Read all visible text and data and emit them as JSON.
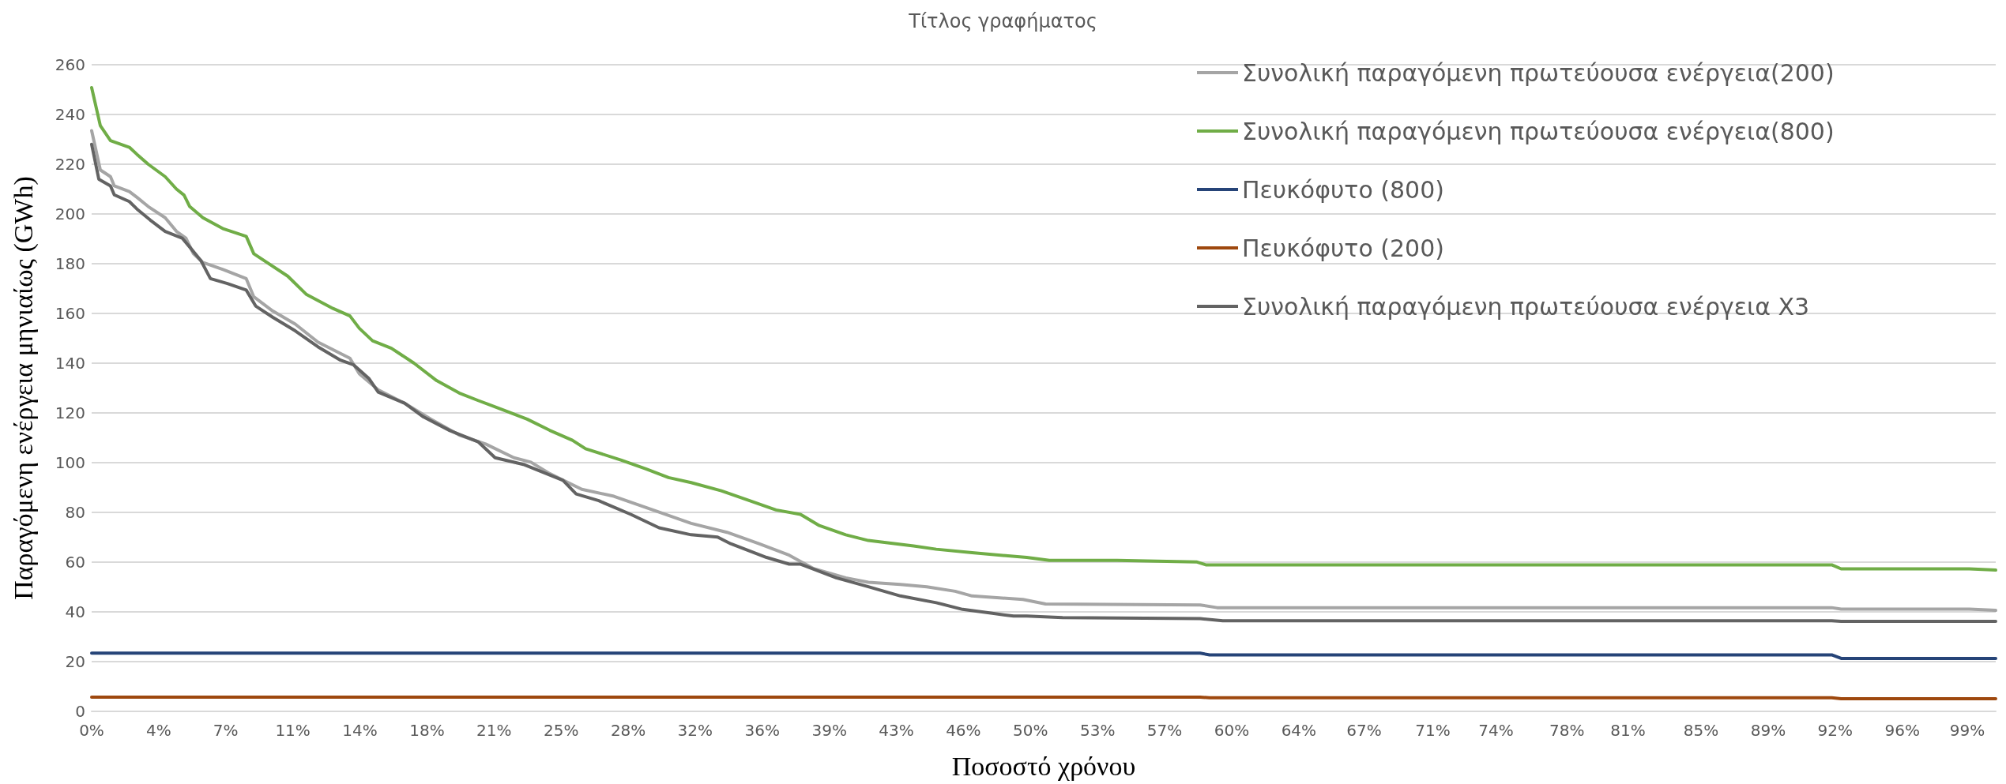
{
  "chart_data": {
    "type": "line",
    "title": "Τίτλος γραφήματος",
    "xlabel": "Ποσοστό χρόνου",
    "ylabel": "Παραγόμενη ενέργεια μηνιαίως (GWh)",
    "xlim": [
      0,
      101
    ],
    "ylim": [
      0,
      260
    ],
    "xticks": [
      {
        "value": 0,
        "label": "0%"
      },
      {
        "value": 3.56,
        "label": "4%"
      },
      {
        "value": 7.11,
        "label": "7%"
      },
      {
        "value": 10.67,
        "label": "11%"
      },
      {
        "value": 14.23,
        "label": "14%"
      },
      {
        "value": 17.79,
        "label": "18%"
      },
      {
        "value": 21.34,
        "label": "21%"
      },
      {
        "value": 24.9,
        "label": "25%"
      },
      {
        "value": 28.46,
        "label": "28%"
      },
      {
        "value": 32.01,
        "label": "32%"
      },
      {
        "value": 35.57,
        "label": "36%"
      },
      {
        "value": 39.13,
        "label": "39%"
      },
      {
        "value": 42.68,
        "label": "43%"
      },
      {
        "value": 46.24,
        "label": "46%"
      },
      {
        "value": 49.8,
        "label": "50%"
      },
      {
        "value": 53.36,
        "label": "53%"
      },
      {
        "value": 56.91,
        "label": "57%"
      },
      {
        "value": 60.47,
        "label": "60%"
      },
      {
        "value": 64.03,
        "label": "64%"
      },
      {
        "value": 67.49,
        "label": "67%"
      },
      {
        "value": 71.14,
        "label": "71%"
      },
      {
        "value": 74.49,
        "label": "74%"
      },
      {
        "value": 78.25,
        "label": "78%"
      },
      {
        "value": 81.49,
        "label": "81%"
      },
      {
        "value": 85.37,
        "label": "85%"
      },
      {
        "value": 88.93,
        "label": "89%"
      },
      {
        "value": 92.48,
        "label": "92%"
      },
      {
        "value": 96.04,
        "label": "96%"
      },
      {
        "value": 99.49,
        "label": "99%"
      }
    ],
    "yticks": [
      0,
      20,
      40,
      60,
      80,
      100,
      120,
      140,
      160,
      180,
      200,
      220,
      240,
      260
    ],
    "grid": "y",
    "legend": "top right",
    "series": [
      {
        "name": "Συνολική παραγόμενη πρωτεύουσα ενέργεια(200)",
        "color": "#a5a5a5",
        "x": [
          0,
          0.46,
          1,
          1.2,
          2,
          2.4,
          3,
          3.9,
          4.5,
          5,
          5.4,
          5.9,
          7,
          8.2,
          8.6,
          9.6,
          10.8,
          12,
          13.7,
          14.2,
          15.2,
          16.6,
          18,
          19.5,
          20.9,
          22.4,
          23.3,
          24.3,
          26,
          27.7,
          30.1,
          31.8,
          33.7,
          35.4,
          37,
          38.3,
          40,
          41.2,
          42.9,
          44.3,
          45.8,
          46.7,
          49.4,
          50.6,
          58.8,
          59.7,
          92.3,
          92.8,
          99.6,
          101
        ],
        "values": [
          233.5,
          217.7,
          215,
          211.3,
          209,
          206.7,
          203,
          198.5,
          193,
          190.3,
          184,
          180.5,
          177.6,
          174,
          166.7,
          161,
          155.7,
          148.5,
          142,
          135.7,
          129.3,
          123.9,
          117.5,
          111.1,
          107.5,
          102,
          100.2,
          95.6,
          89.3,
          86.5,
          80.1,
          75.6,
          72,
          67.4,
          62.8,
          57.4,
          53.7,
          51.9,
          51,
          50.1,
          48.3,
          46.4,
          45,
          43.2,
          42.8,
          41.7,
          41.7,
          41.1,
          41.1,
          40.6
        ]
      },
      {
        "name": "Συνολική παραγόμενη πρωτεύουσα ενέργεια(800)",
        "color": "#70ad47",
        "x": [
          0,
          0.46,
          1,
          2,
          2.4,
          3,
          3.9,
          4.5,
          4.9,
          5.2,
          5.9,
          7,
          8.2,
          8.6,
          9.2,
          10.4,
          11.4,
          12.8,
          13.7,
          14.2,
          14.9,
          15.9,
          17.1,
          18.3,
          19.5,
          20.5,
          21.9,
          23.1,
          24.3,
          25.5,
          26.2,
          28.1,
          29.4,
          30.6,
          31.8,
          33.4,
          34.9,
          36.3,
          37.6,
          38.6,
          40,
          41.2,
          43.6,
          44.8,
          46.7,
          49.6,
          50.8,
          54.4,
          58.6,
          59.1,
          92.3,
          92.8,
          99.6,
          101
        ],
        "values": [
          250.8,
          235.5,
          229.5,
          226.8,
          224,
          220,
          215,
          210,
          207.6,
          203,
          198.5,
          194,
          191,
          184,
          181,
          175,
          167.6,
          162,
          159,
          154,
          149,
          146,
          140,
          133,
          128,
          125,
          121,
          117.5,
          113,
          109,
          105.6,
          101,
          97.5,
          94,
          92,
          88.7,
          84.7,
          81,
          79.2,
          74.7,
          71,
          68.7,
          66.5,
          65.2,
          63.8,
          61.9,
          60.7,
          60.7,
          60.1,
          58.9,
          58.9,
          57.3,
          57.3,
          56.8
        ]
      },
      {
        "name": "Πευκόφυτο (800)",
        "color": "#264478",
        "x": [
          0,
          58.8,
          59.3,
          92.3,
          92.8,
          101
        ],
        "values": [
          23.4,
          23.4,
          22.7,
          22.7,
          21.3,
          21.3
        ]
      },
      {
        "name": "Πευκόφυτο (200)",
        "color": "#9e480e",
        "x": [
          0,
          58.8,
          59.3,
          92.3,
          92.8,
          101
        ],
        "values": [
          5.7,
          5.7,
          5.5,
          5.5,
          5.1,
          5.1
        ]
      },
      {
        "name": "Συνολική παραγόμενη πρωτεύουσα ενέργεια X3",
        "color": "#636363",
        "x": [
          0,
          0.38,
          1,
          1.2,
          2,
          2.4,
          3.1,
          3.9,
          4.8,
          5.2,
          5.8,
          6.3,
          7.2,
          8.2,
          8.7,
          9.6,
          10.8,
          12,
          13.2,
          13.9,
          14.7,
          15.2,
          16.6,
          17.6,
          19,
          20.5,
          21.4,
          22.9,
          25,
          25.7,
          26.9,
          28.6,
          30.1,
          31.8,
          33.2,
          33.9,
          35.8,
          37,
          37.6,
          39.5,
          41.2,
          42.9,
          44.8,
          46.2,
          47.7,
          48.9,
          49.6,
          51.5,
          58.8,
          60,
          92.3,
          92.8,
          101
        ],
        "values": [
          228,
          214,
          211.3,
          207.7,
          205,
          202,
          197.6,
          193,
          190.3,
          186.7,
          181.2,
          174,
          172,
          169.4,
          163,
          158.5,
          153,
          146.6,
          141.2,
          139.3,
          133.9,
          128.4,
          123.9,
          118.4,
          112.9,
          108.4,
          102,
          99.3,
          92.9,
          87.4,
          84.7,
          79.2,
          73.8,
          71,
          70.1,
          67.4,
          61.9,
          59.2,
          59.2,
          53.7,
          50.1,
          46.4,
          43.7,
          41,
          39.5,
          38.3,
          38.3,
          37.7,
          37.3,
          36.4,
          36.4,
          36.2,
          36.2
        ]
      }
    ]
  }
}
